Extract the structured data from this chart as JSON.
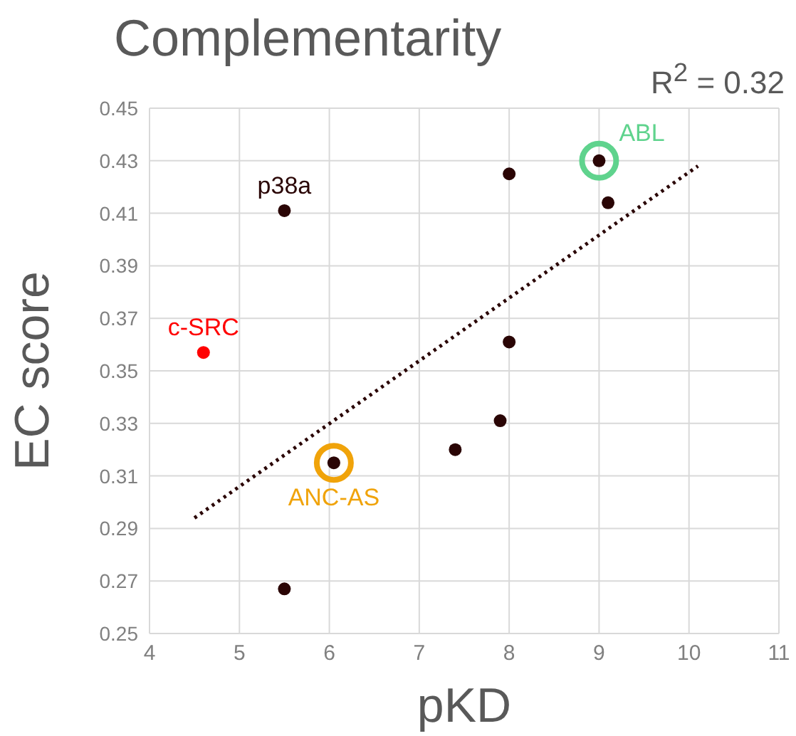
{
  "chart_data": {
    "type": "scatter",
    "title": "Complementarity",
    "xlabel": "pKD",
    "ylabel": "EC score",
    "annotations": [
      "R$^{2}$  = 0.32"
    ],
    "xlim": [
      4,
      11
    ],
    "xticks": [
      4,
      5,
      6,
      7,
      8,
      9,
      10,
      11
    ],
    "ylim": [
      0.25,
      0.45
    ],
    "yticks": [
      0.25,
      0.27,
      0.29,
      0.31,
      0.33,
      0.35,
      0.37,
      0.39,
      0.41,
      0.43,
      0.45
    ],
    "grid": true,
    "marker": "circle",
    "series": [
      {
        "color": "#2a0505",
        "x": [
          8.0,
          9.0,
          9.1,
          8.0,
          7.9,
          7.4,
          6.05,
          5.5
        ],
        "values": [
          0.425,
          0.43,
          0.414,
          0.361,
          0.331,
          0.32,
          0.315,
          0.267
        ]
      },
      {
        "name": "p38a",
        "color": "#2a0505",
        "x": [
          5.5
        ],
        "values": [
          0.411
        ]
      },
      {
        "name": "c-SRC",
        "color": "#ff0000",
        "x": [
          4.6
        ],
        "values": [
          0.357
        ]
      },
      {
        "name": "ABL",
        "type": "bubble",
        "color": "#5fd38d",
        "x": [
          9.0
        ],
        "values": [
          0.43
        ],
        "sizes": [
          1
        ]
      },
      {
        "name": "ANC-AS",
        "type": "bubble",
        "color": "#f0a30a",
        "x": [
          6.05
        ],
        "values": [
          0.315
        ],
        "sizes": [
          1
        ]
      },
      {
        "type": "line",
        "marker": "none",
        "line_style": "dotted",
        "color": "#2a0505",
        "x": [
          4.5,
          10.1
        ],
        "values": [
          0.294,
          0.428
        ]
      }
    ]
  }
}
